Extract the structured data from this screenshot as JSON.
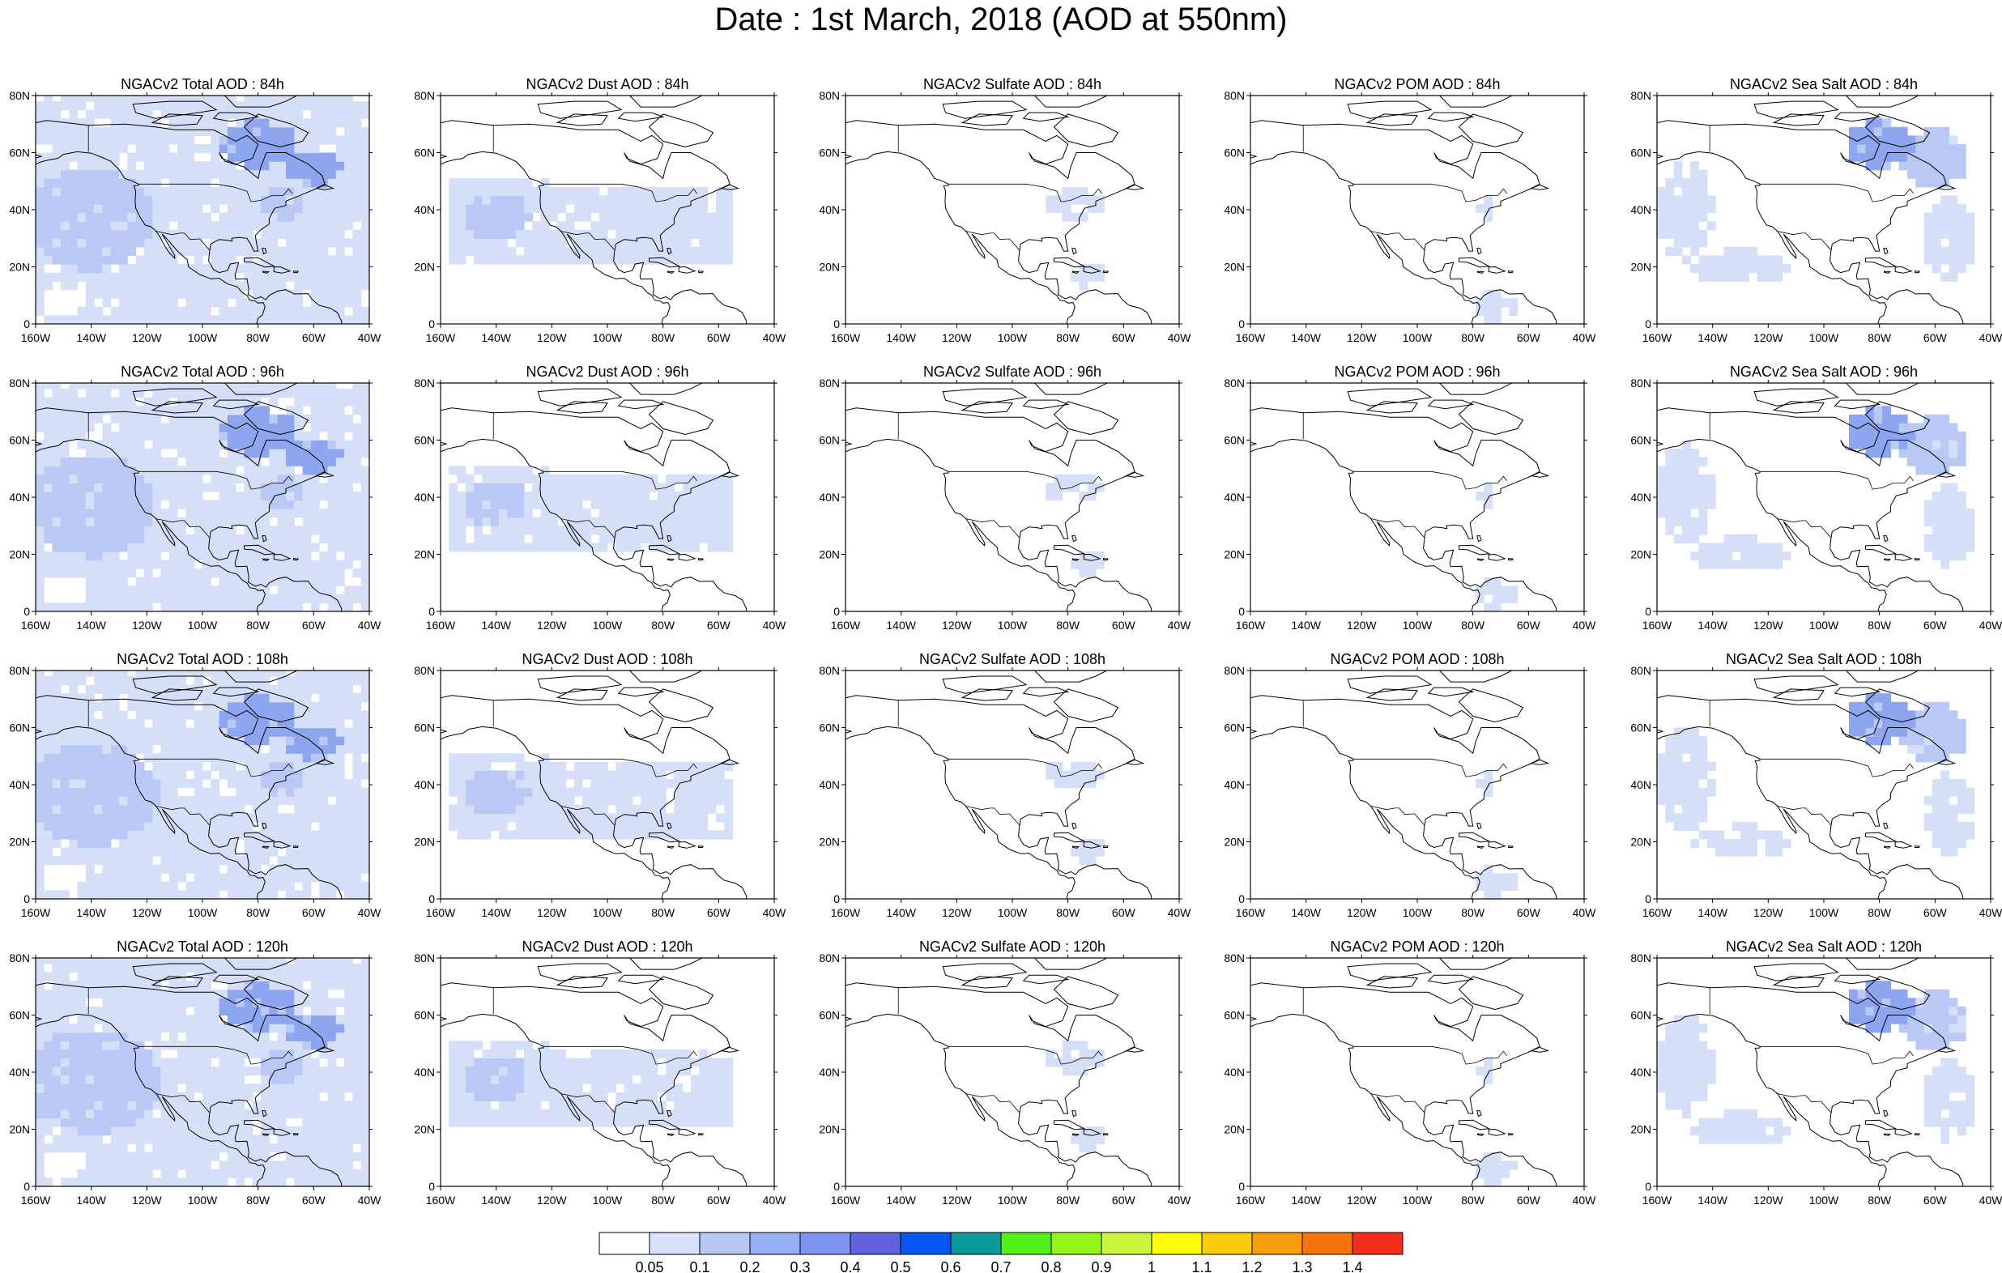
{
  "title": "Date : 1st March, 2018 (AOD at 550nm)",
  "rows": [
    {
      "panels": [
        {
          "title": "NGACv2 Total AOD : 84h",
          "field": "total"
        },
        {
          "title": "NGACv2 Dust AOD : 84h",
          "field": "dust"
        },
        {
          "title": "NGACv2 Sulfate AOD : 84h",
          "field": "sulfate"
        },
        {
          "title": "NGACv2 POM AOD : 84h",
          "field": "pom"
        },
        {
          "title": "NGACv2 Sea Salt AOD : 84h",
          "field": "seasalt"
        }
      ]
    },
    {
      "panels": [
        {
          "title": "NGACv2 Total AOD : 96h",
          "field": "total"
        },
        {
          "title": "NGACv2 Dust AOD : 96h",
          "field": "dust"
        },
        {
          "title": "NGACv2 Sulfate AOD : 96h",
          "field": "sulfate"
        },
        {
          "title": "NGACv2 POM AOD : 96h",
          "field": "pom"
        },
        {
          "title": "NGACv2 Sea Salt AOD : 96h",
          "field": "seasalt"
        }
      ]
    },
    {
      "panels": [
        {
          "title": "NGACv2 Total AOD : 108h",
          "field": "total"
        },
        {
          "title": "NGACv2 Dust AOD : 108h",
          "field": "dust"
        },
        {
          "title": "NGACv2 Sulfate AOD : 108h",
          "field": "sulfate"
        },
        {
          "title": "NGACv2 POM AOD : 108h",
          "field": "pom"
        },
        {
          "title": "NGACv2 Sea Salt AOD : 108h",
          "field": "seasalt"
        }
      ]
    },
    {
      "panels": [
        {
          "title": "NGACv2 Total AOD : 120h",
          "field": "total"
        },
        {
          "title": "NGACv2 Dust AOD : 120h",
          "field": "dust"
        },
        {
          "title": "NGACv2 Sulfate AOD : 120h",
          "field": "sulfate"
        },
        {
          "title": "NGACv2 POM AOD : 120h",
          "field": "pom"
        },
        {
          "title": "NGACv2 Sea Salt  AOD : 120h",
          "field": "seasalt"
        }
      ]
    }
  ],
  "lat_ticks": [
    "80N",
    "60N",
    "40N",
    "20N",
    "0"
  ],
  "lon_ticks": [
    "160W",
    "140W",
    "120W",
    "100W",
    "80W",
    "60W",
    "40W"
  ],
  "map_extent": {
    "lon": [
      -160,
      -40
    ],
    "lat": [
      0,
      80
    ]
  },
  "colorbar": {
    "labels": [
      "0.05",
      "0.1",
      "0.2",
      "0.3",
      "0.4",
      "0.5",
      "0.6",
      "0.7",
      "0.8",
      "0.9",
      "1",
      "1.1",
      "1.2",
      "1.3",
      "1.4"
    ],
    "colors": [
      "#ffffff",
      "#d9e2fa",
      "#b7c7f6",
      "#97aef4",
      "#7f93f0",
      "#6262e0",
      "#0a55f5",
      "#0e9a9a",
      "#55ef1a",
      "#94f51a",
      "#c9f53c",
      "#fdfd06",
      "#fccb08",
      "#fa9d0b",
      "#f5740b",
      "#f42e1c"
    ]
  },
  "palette": {
    "light": "#d6dff8",
    "medium": "#b9c8f5",
    "dark": "#8ea5ef",
    "coast": "#000000"
  }
}
